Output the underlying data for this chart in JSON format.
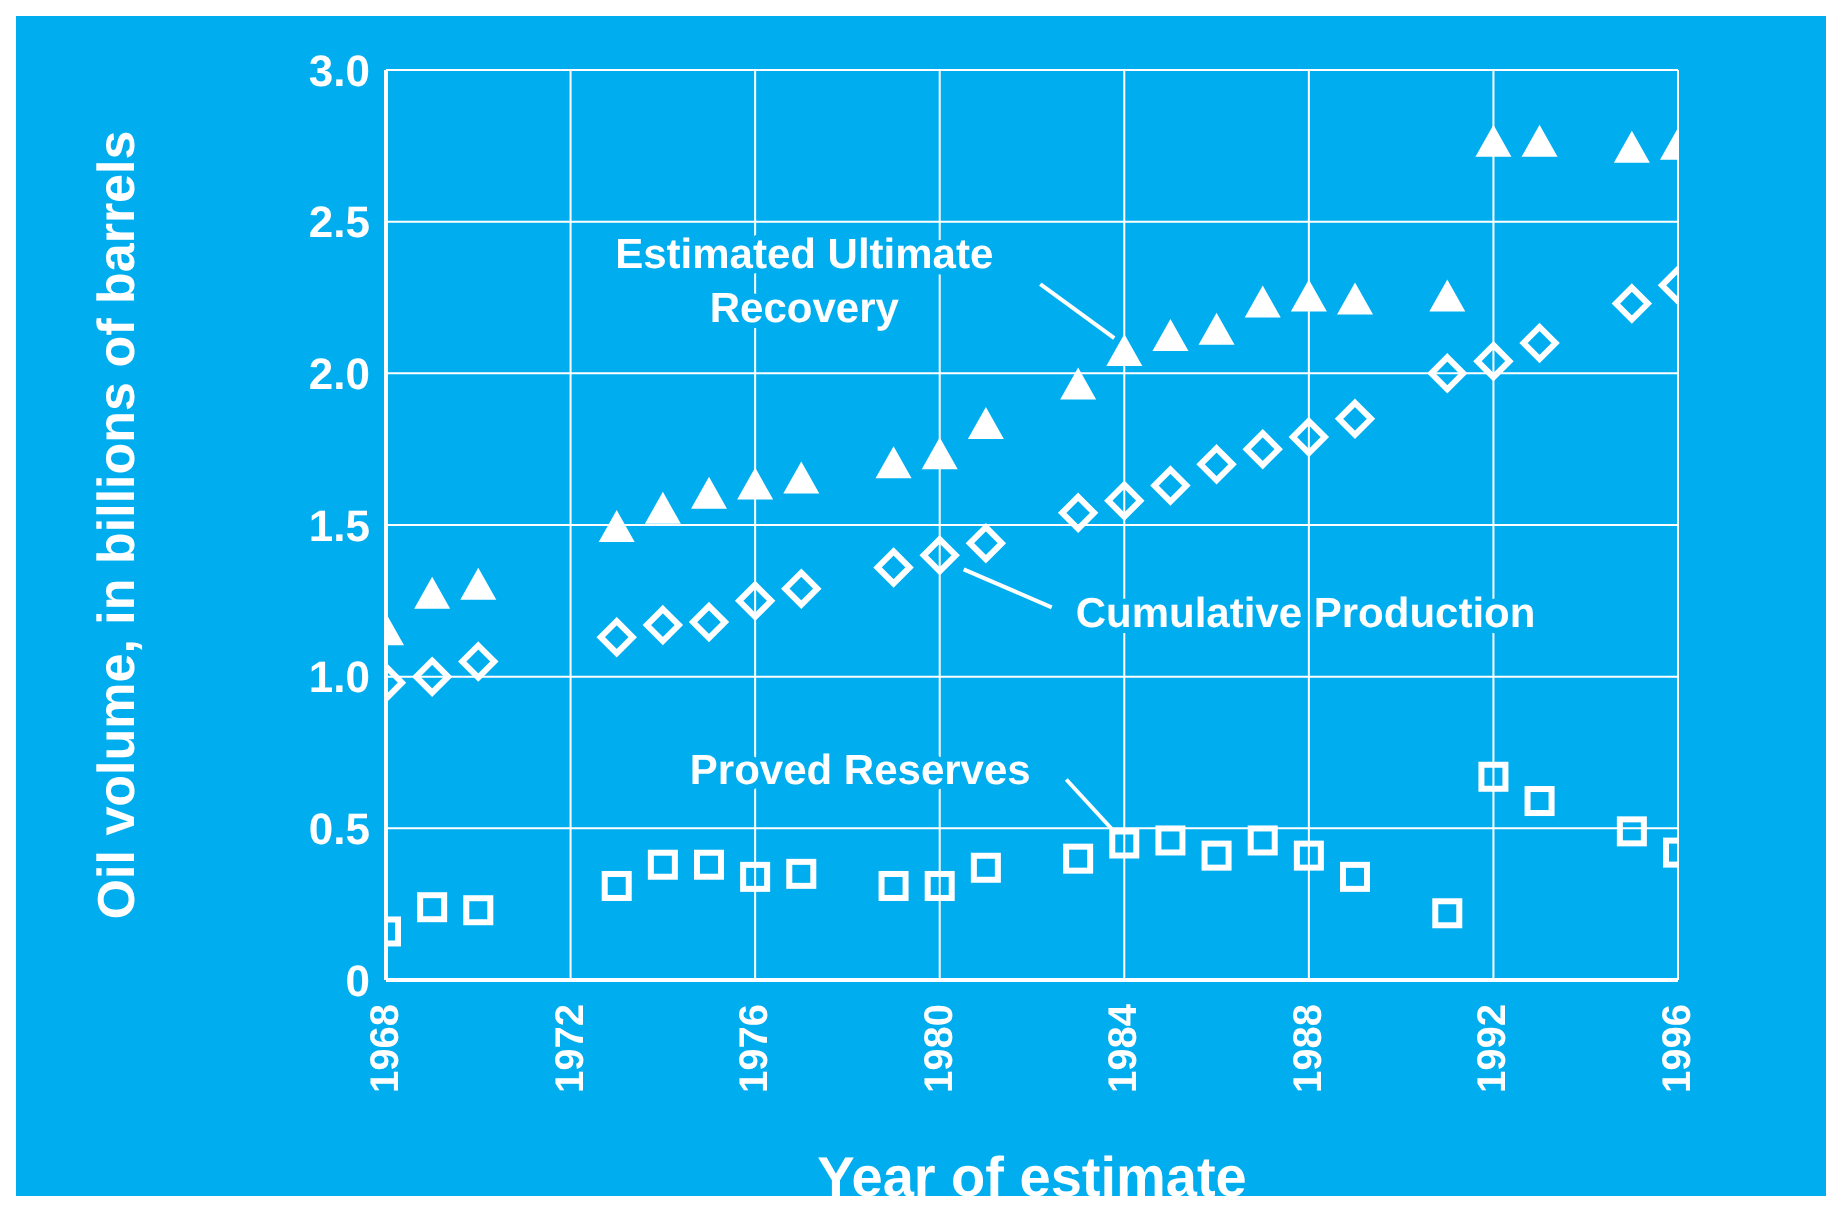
{
  "chart_data": {
    "type": "scatter",
    "xlabel": "Year of estimate",
    "ylabel": "Oil volume, in billions of barrels",
    "x": [
      1968,
      1969,
      1970,
      1973,
      1974,
      1975,
      1976,
      1977,
      1979,
      1980,
      1981,
      1983,
      1984,
      1985,
      1986,
      1987,
      1988,
      1989,
      1991,
      1992,
      1993,
      1995,
      1996
    ],
    "series": [
      {
        "name": "Estimated Ultimate Recovery",
        "color": "#ffffff",
        "marker": "triangle",
        "values": [
          1.15,
          1.27,
          1.3,
          1.49,
          1.55,
          1.6,
          1.63,
          1.65,
          1.7,
          1.73,
          1.83,
          1.96,
          2.07,
          2.12,
          2.14,
          2.23,
          2.25,
          2.24,
          2.25,
          2.76,
          2.76,
          2.74,
          2.75
        ]
      },
      {
        "name": "Cumulative Production",
        "color": "#ffffff",
        "marker": "diamond",
        "values": [
          0.98,
          1.0,
          1.05,
          1.13,
          1.17,
          1.18,
          1.25,
          1.29,
          1.36,
          1.4,
          1.44,
          1.54,
          1.58,
          1.63,
          1.7,
          1.75,
          1.79,
          1.85,
          2.0,
          2.04,
          2.1,
          2.23,
          2.29
        ]
      },
      {
        "name": "Proved Reserves",
        "color": "#ffffff",
        "marker": "square",
        "values": [
          0.16,
          0.24,
          0.23,
          0.31,
          0.38,
          0.38,
          0.34,
          0.35,
          0.31,
          0.31,
          0.37,
          0.4,
          0.45,
          0.46,
          0.41,
          0.46,
          0.41,
          0.34,
          0.22,
          0.67,
          0.59,
          0.49,
          0.42
        ]
      }
    ],
    "xlim": [
      1968,
      1996
    ],
    "xticks": [
      1968,
      1972,
      1976,
      1980,
      1984,
      1988,
      1992,
      1996
    ],
    "ylim": [
      0,
      3
    ],
    "yticks": [
      {
        "value": 0,
        "label": "0"
      },
      {
        "value": 0.5,
        "label": "0.5"
      },
      {
        "value": 1,
        "label": "1.0"
      },
      {
        "value": 1.5,
        "label": "1.5"
      },
      {
        "value": 2,
        "label": "2.0"
      },
      {
        "value": 2.5,
        "label": "2.5"
      },
      {
        "value": 3,
        "label": "3.0"
      }
    ],
    "grid": true
  }
}
